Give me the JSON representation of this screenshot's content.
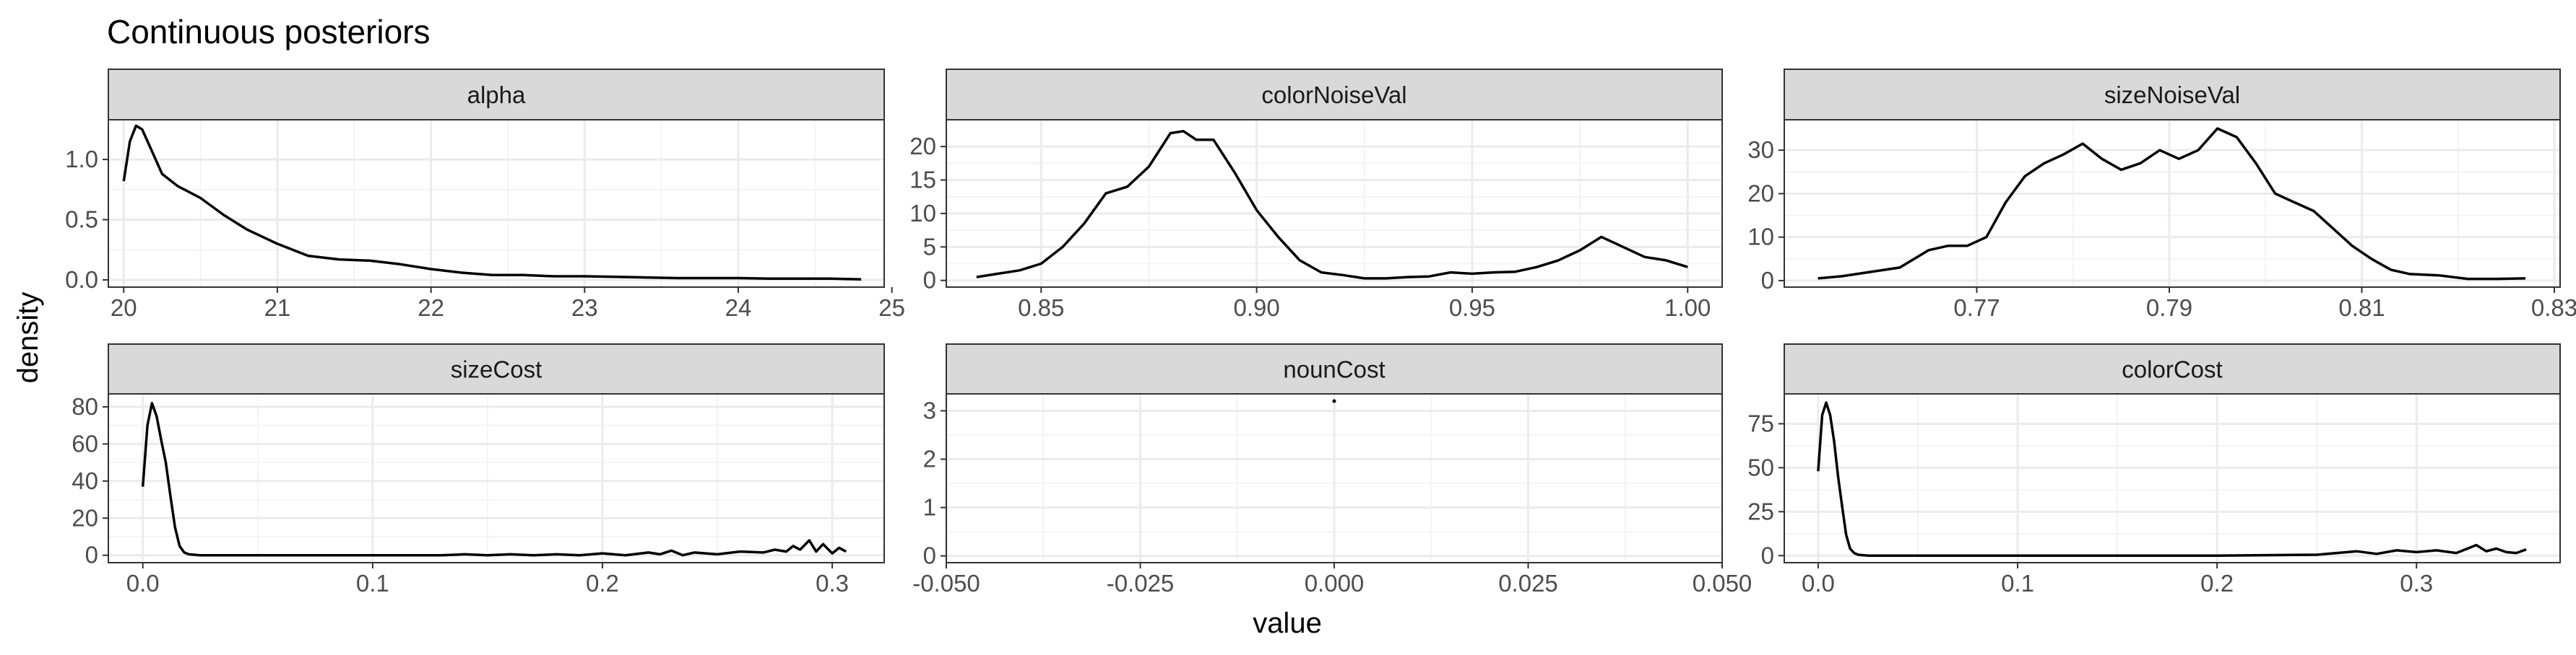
{
  "figure": {
    "title": "Continuous posteriors",
    "xlabel": "value",
    "ylabel": "density"
  },
  "colors": {
    "strip_fill": "#d9d9d9",
    "panel_border": "#333333",
    "grid_major": "#ebebeb",
    "grid_minor": "#f4f4f4",
    "line": "#000000",
    "text": "#000000",
    "tick_text": "#4d4d4d"
  },
  "chart_data": [
    {
      "type": "line",
      "facet": "alpha",
      "xlim": [
        19.9,
        24.95
      ],
      "ylim": [
        -0.06,
        1.33
      ],
      "x_ticks": [
        20,
        21,
        22,
        23,
        24,
        25
      ],
      "x_tick_labels": [
        "20",
        "21",
        "22",
        "23",
        "24",
        "25"
      ],
      "y_ticks": [
        0,
        0.5,
        1
      ],
      "y_tick_labels": [
        "0.0",
        "0.5",
        "1.0"
      ],
      "x": [
        20.0,
        20.04,
        20.08,
        20.12,
        20.18,
        20.25,
        20.35,
        20.5,
        20.65,
        20.8,
        21.0,
        21.2,
        21.4,
        21.6,
        21.8,
        22.0,
        22.2,
        22.4,
        22.6,
        22.8,
        23.0,
        23.2,
        23.4,
        23.6,
        23.8,
        24.0,
        24.2,
        24.4,
        24.6,
        24.8
      ],
      "y": [
        0.82,
        1.15,
        1.28,
        1.25,
        1.08,
        0.88,
        0.78,
        0.68,
        0.54,
        0.42,
        0.3,
        0.2,
        0.17,
        0.16,
        0.13,
        0.09,
        0.06,
        0.04,
        0.04,
        0.03,
        0.03,
        0.025,
        0.02,
        0.015,
        0.015,
        0.015,
        0.01,
        0.01,
        0.01,
        0.005
      ]
    },
    {
      "type": "line",
      "facet": "colorNoiseVal",
      "xlim": [
        0.828,
        1.008
      ],
      "ylim": [
        -1,
        24
      ],
      "x_ticks": [
        0.85,
        0.9,
        0.95,
        1.0
      ],
      "x_tick_labels": [
        "0.85",
        "0.90",
        "0.95",
        "1.00"
      ],
      "y_ticks": [
        0,
        5,
        10,
        15,
        20
      ],
      "y_tick_labels": [
        "0",
        "5",
        "10",
        "15",
        "20"
      ],
      "x": [
        0.835,
        0.84,
        0.845,
        0.85,
        0.855,
        0.86,
        0.865,
        0.87,
        0.875,
        0.88,
        0.883,
        0.886,
        0.89,
        0.895,
        0.9,
        0.905,
        0.91,
        0.915,
        0.92,
        0.925,
        0.93,
        0.935,
        0.94,
        0.945,
        0.95,
        0.955,
        0.96,
        0.965,
        0.97,
        0.975,
        0.98,
        0.985,
        0.99,
        0.995,
        1.0
      ],
      "y": [
        0.5,
        1,
        1.5,
        2.5,
        5,
        8.5,
        13,
        14,
        17,
        22,
        22.3,
        21,
        21,
        16,
        10.5,
        6.5,
        3,
        1.2,
        0.8,
        0.3,
        0.3,
        0.5,
        0.6,
        1.2,
        1,
        1.2,
        1.3,
        2,
        3,
        4.5,
        6.5,
        5,
        3.5,
        3,
        2
      ]
    },
    {
      "type": "line",
      "facet": "sizeNoiseVal",
      "xlim": [
        0.75,
        0.8306
      ],
      "ylim": [
        -1.5,
        37
      ],
      "x_ticks": [
        0.77,
        0.79,
        0.81,
        0.83
      ],
      "x_tick_labels": [
        "0.77",
        "0.79",
        "0.81",
        "0.83"
      ],
      "y_ticks": [
        0,
        10,
        20,
        30
      ],
      "y_tick_labels": [
        "0",
        "10",
        "20",
        "30"
      ],
      "x": [
        0.7535,
        0.756,
        0.759,
        0.762,
        0.765,
        0.767,
        0.769,
        0.771,
        0.773,
        0.775,
        0.777,
        0.779,
        0.781,
        0.783,
        0.785,
        0.787,
        0.789,
        0.791,
        0.793,
        0.795,
        0.797,
        0.799,
        0.801,
        0.803,
        0.805,
        0.807,
        0.809,
        0.811,
        0.813,
        0.815,
        0.818,
        0.821,
        0.824,
        0.827
      ],
      "y": [
        0.5,
        1,
        2,
        3,
        7,
        8,
        8,
        10,
        18,
        24,
        27,
        29,
        31.5,
        28,
        25.5,
        27,
        30,
        28,
        30,
        35,
        33,
        27,
        20,
        18,
        16,
        12,
        8,
        5,
        2.5,
        1.5,
        1.2,
        0.4,
        0.4,
        0.5
      ]
    },
    {
      "type": "line",
      "facet": "sizeCost",
      "xlim": [
        -0.015,
        0.3226
      ],
      "ylim": [
        -4,
        87
      ],
      "x_ticks": [
        0,
        0.1,
        0.2,
        0.3
      ],
      "x_tick_labels": [
        "0.0",
        "0.1",
        "0.2",
        "0.3"
      ],
      "y_ticks": [
        0,
        20,
        40,
        60,
        80
      ],
      "y_tick_labels": [
        "0",
        "20",
        "40",
        "60",
        "80"
      ],
      "x": [
        0.0,
        0.002,
        0.004,
        0.006,
        0.008,
        0.01,
        0.012,
        0.014,
        0.016,
        0.018,
        0.02,
        0.025,
        0.05,
        0.1,
        0.13,
        0.14,
        0.15,
        0.16,
        0.17,
        0.18,
        0.19,
        0.2,
        0.21,
        0.22,
        0.225,
        0.23,
        0.235,
        0.24,
        0.25,
        0.26,
        0.27,
        0.275,
        0.28,
        0.283,
        0.286,
        0.29,
        0.293,
        0.296,
        0.3,
        0.303,
        0.306
      ],
      "y": [
        37,
        70,
        82,
        75,
        62,
        50,
        32,
        15,
        5,
        1.5,
        0.5,
        0,
        0,
        0,
        0,
        0.5,
        0,
        0.5,
        0,
        0.5,
        0,
        1,
        0,
        1.5,
        0.5,
        2.5,
        0,
        1.5,
        0.5,
        2,
        1.5,
        3,
        2,
        5,
        3,
        8,
        2,
        6,
        1,
        4,
        2
      ]
    },
    {
      "type": "scatter",
      "facet": "nounCost",
      "xlim": [
        -0.05,
        0.05
      ],
      "ylim": [
        -0.14,
        3.35
      ],
      "x_ticks": [
        -0.05,
        -0.025,
        0,
        0.025,
        0.05
      ],
      "x_tick_labels": [
        "-0.050",
        "-0.025",
        "0.000",
        "0.025",
        "0.050"
      ],
      "y_ticks": [
        0,
        1,
        2,
        3
      ],
      "y_tick_labels": [
        "0",
        "1",
        "2",
        "3"
      ],
      "x": [
        0.0
      ],
      "y": [
        3.2
      ]
    },
    {
      "type": "line",
      "facet": "colorCost",
      "xlim": [
        -0.017,
        0.372
      ],
      "ylim": [
        -4,
        92
      ],
      "x_ticks": [
        0,
        0.1,
        0.2,
        0.3
      ],
      "x_tick_labels": [
        "0.0",
        "0.1",
        "0.2",
        "0.3"
      ],
      "y_ticks": [
        0,
        25,
        50,
        75
      ],
      "y_tick_labels": [
        "0",
        "25",
        "50",
        "75"
      ],
      "x": [
        0.0,
        0.002,
        0.004,
        0.006,
        0.008,
        0.01,
        0.012,
        0.014,
        0.016,
        0.018,
        0.02,
        0.025,
        0.05,
        0.1,
        0.15,
        0.2,
        0.25,
        0.27,
        0.28,
        0.29,
        0.3,
        0.31,
        0.32,
        0.33,
        0.335,
        0.34,
        0.345,
        0.35,
        0.355
      ],
      "y": [
        48,
        80,
        87,
        80,
        65,
        45,
        28,
        12,
        4,
        1.5,
        0.5,
        0,
        0,
        0,
        0,
        0,
        0.5,
        2.5,
        1,
        3,
        2,
        3,
        1.5,
        6,
        2.5,
        4,
        2,
        1.5,
        3.5
      ]
    }
  ]
}
